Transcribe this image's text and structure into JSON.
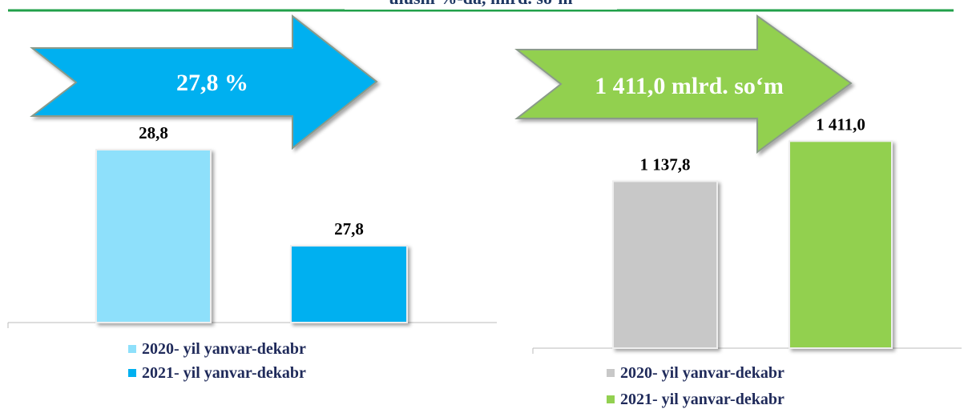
{
  "header": "ulushi %-da, mlrd. so‘m",
  "chart_data": [
    {
      "type": "bar",
      "annotation": "27,8 %",
      "ylim": [
        27,
        29
      ],
      "series": [
        {
          "name": "2020- yil yanvar-dekabr",
          "color": "#8ee0fb",
          "values": [
            28.8
          ],
          "value_labels": [
            "28,8"
          ]
        },
        {
          "name": "2021- yil yanvar-dekabr",
          "color": "#00b0f0",
          "values": [
            27.8
          ],
          "value_labels": [
            "27,8"
          ]
        }
      ]
    },
    {
      "type": "bar",
      "annotation": "1 411,0 mlrd. so‘m",
      "ylim": [
        0,
        1500
      ],
      "series": [
        {
          "name": "2020- yil yanvar-dekabr",
          "color": "#c8c8c8",
          "values": [
            1137.8
          ],
          "value_labels": [
            "1 137,8"
          ]
        },
        {
          "name": "2021- yil yanvar-dekabr",
          "color": "#92d050",
          "values": [
            1411.0
          ],
          "value_labels": [
            "1 411,0"
          ]
        }
      ]
    }
  ]
}
